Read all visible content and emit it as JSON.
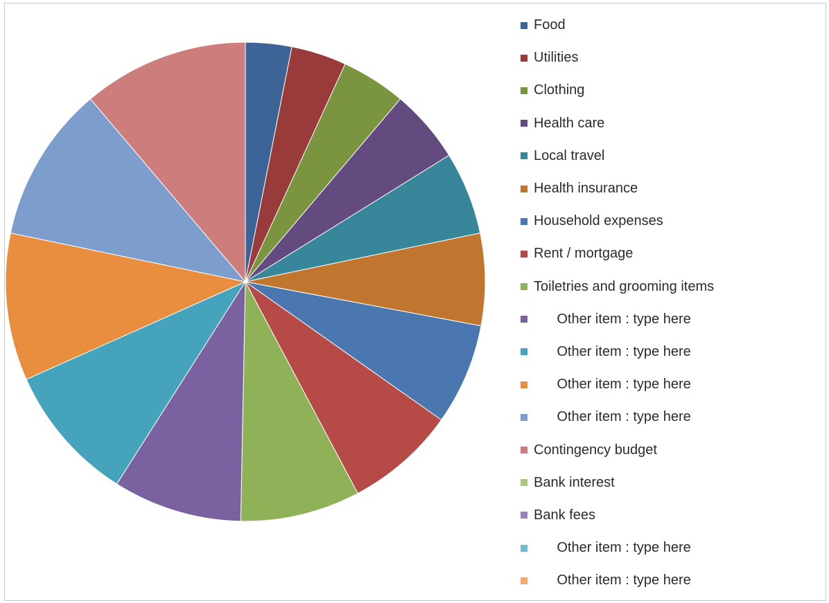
{
  "chart_data": {
    "type": "pie",
    "title": "",
    "legend_position": "right",
    "slices": [
      {
        "label": "Food",
        "value": 3.0,
        "color": "#3C6497"
      },
      {
        "label": "Utilities",
        "value": 3.6,
        "color": "#983B3A"
      },
      {
        "label": "Clothing",
        "value": 4.2,
        "color": "#7A9440"
      },
      {
        "label": "Health care",
        "value": 4.8,
        "color": "#634B80"
      },
      {
        "label": "Local travel",
        "value": 5.4,
        "color": "#37869A"
      },
      {
        "label": "Health insurance",
        "value": 6.0,
        "color": "#C1762F"
      },
      {
        "label": "Household expenses",
        "value": 6.6,
        "color": "#4A77B0"
      },
      {
        "label": "Rent / mortgage",
        "value": 7.2,
        "color": "#B64A47"
      },
      {
        "label": "Toiletries and grooming items",
        "value": 7.8,
        "color": "#8FB157"
      },
      {
        "label": "      Other item : type here",
        "value": 8.4,
        "color": "#7A62A0"
      },
      {
        "label": "      Other item : type here",
        "value": 9.0,
        "color": "#45A3BC"
      },
      {
        "label": "      Other item : type here",
        "value": 9.6,
        "color": "#E98E3F"
      },
      {
        "label": "      Other item : type here",
        "value": 10.2,
        "color": "#7D9ECC"
      },
      {
        "label": "Contingency budget",
        "value": 10.8,
        "color": "#CD7D7C"
      },
      {
        "label": "Bank interest",
        "value": 0,
        "color": "#A9C77E"
      },
      {
        "label": "Bank fees",
        "value": 0,
        "color": "#9784B7"
      },
      {
        "label": "      Other item : type here",
        "value": 0,
        "color": "#6FBAD1"
      },
      {
        "label": "      Other item : type here",
        "value": 0,
        "color": "#F6A96C"
      }
    ]
  }
}
